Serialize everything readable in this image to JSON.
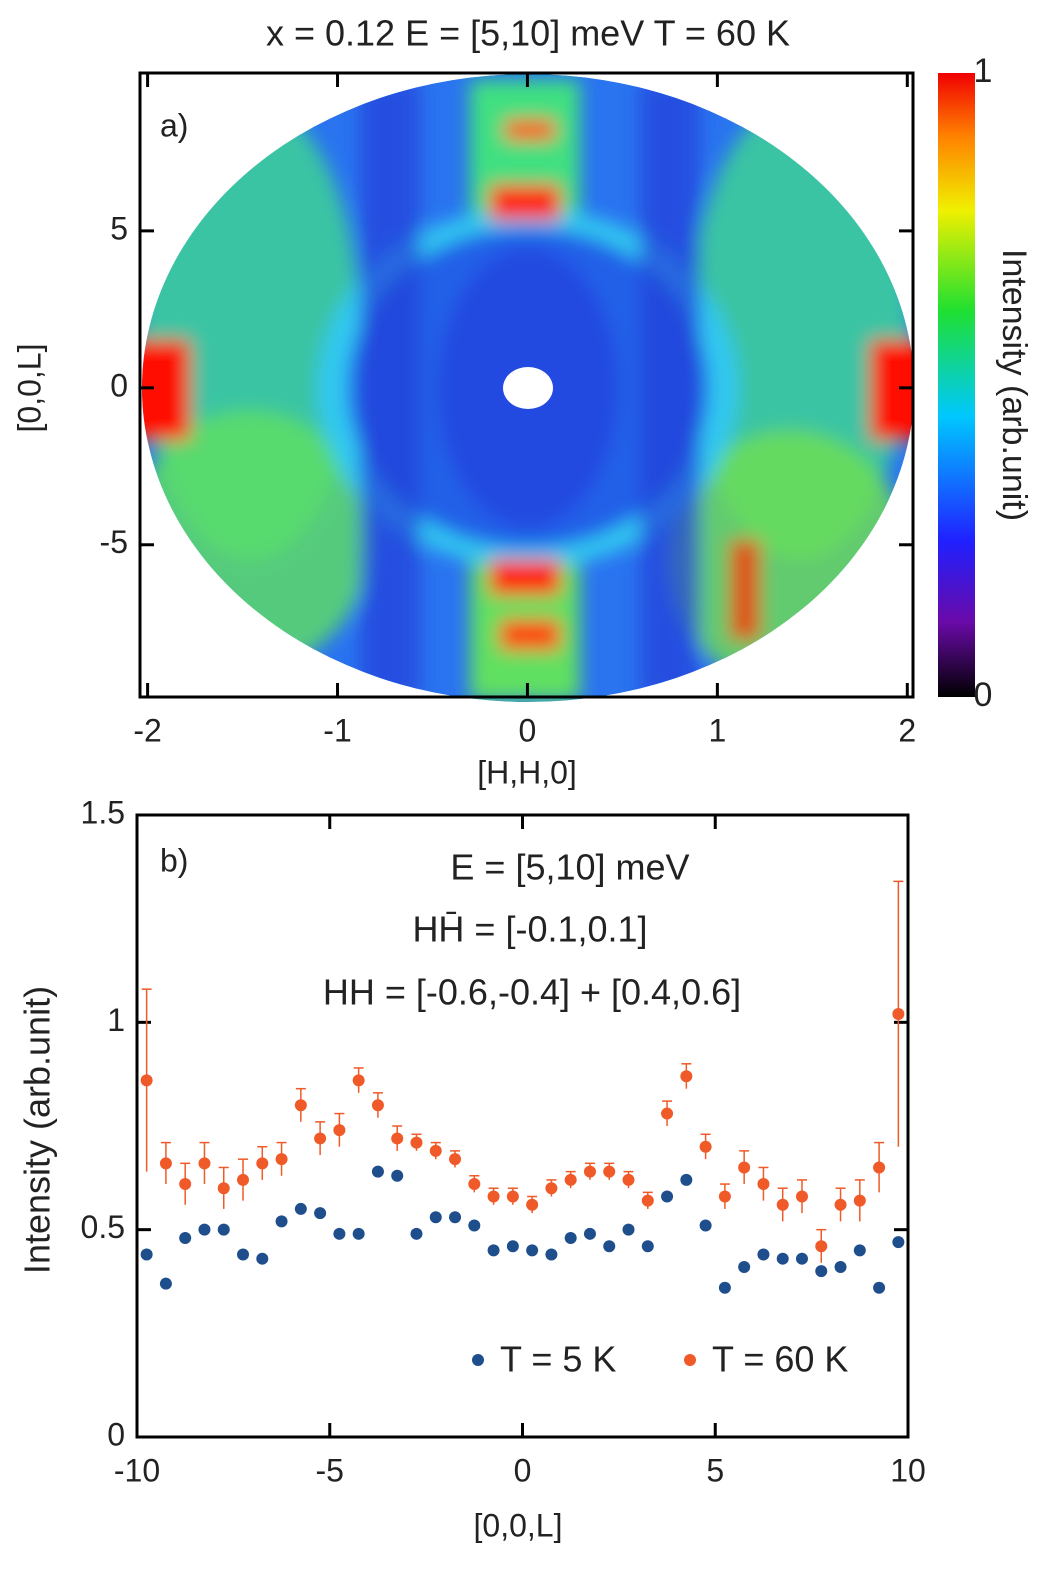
{
  "chart_data": [
    {
      "type": "heatmap",
      "title": "x = 0.12 E = [5,10] meV T = 60 K",
      "annotation": "a)",
      "xlabel": "[H,H,0]",
      "ylabel": "[0,0,L]",
      "xlim": [
        -2.04,
        2.03
      ],
      "xticks": [
        -2,
        -1,
        0,
        1,
        2
      ],
      "ylim": [
        -9.85,
        10.03
      ],
      "yticks": [
        -5,
        0,
        5
      ],
      "colorbar": {
        "label": "Intensity (arb.unit)",
        "lim": [
          0,
          1
        ],
        "ticks": [
          0,
          1
        ]
      }
    },
    {
      "type": "scatter",
      "annotation": "b)",
      "texts": [
        "E = [5,10] meV",
        "HH̄ = [-0.1,0.1]",
        "HH = [-0.6,-0.4] + [0.4,0.6]"
      ],
      "xlabel": "[0,0,L]",
      "ylabel": "Intensity (arb.unit)",
      "xlim": [
        -10,
        10
      ],
      "xticks": [
        -10,
        -5,
        0,
        5,
        10
      ],
      "ylim": [
        0,
        1.5
      ],
      "yticks": [
        0,
        0.5,
        1,
        1.5
      ],
      "x": [
        -9.75,
        -9.25,
        -8.75,
        -8.25,
        -7.75,
        -7.25,
        -6.75,
        -6.25,
        -5.75,
        -5.25,
        -4.75,
        -4.25,
        -3.75,
        -3.25,
        -2.75,
        -2.25,
        -1.75,
        -1.25,
        -0.75,
        -0.25,
        0.25,
        0.75,
        1.25,
        1.75,
        2.25,
        2.75,
        3.25,
        3.75,
        4.25,
        4.75,
        5.25,
        5.75,
        6.25,
        6.75,
        7.25,
        7.75,
        8.25,
        8.75,
        9.25,
        9.75
      ],
      "series": [
        {
          "name": "T = 5 K",
          "color": "#1f4e8c",
          "values": [
            0.44,
            0.37,
            0.48,
            0.5,
            0.5,
            0.44,
            0.43,
            0.52,
            0.55,
            0.54,
            0.49,
            0.49,
            0.64,
            0.63,
            0.49,
            0.53,
            0.53,
            0.51,
            0.45,
            0.46,
            0.45,
            0.44,
            0.48,
            0.49,
            0.46,
            0.5,
            0.46,
            0.58,
            0.62,
            0.51,
            0.36,
            0.41,
            0.44,
            0.43,
            0.43,
            0.4,
            0.41,
            0.45,
            0.36,
            0.47
          ]
        },
        {
          "name": "T = 60 K",
          "color": "#f05a28",
          "values": [
            0.86,
            0.66,
            0.61,
            0.66,
            0.6,
            0.62,
            0.66,
            0.67,
            0.8,
            0.72,
            0.74,
            0.86,
            0.8,
            0.72,
            0.71,
            0.69,
            0.67,
            0.61,
            0.58,
            0.58,
            0.56,
            0.6,
            0.62,
            0.64,
            0.64,
            0.62,
            0.57,
            0.78,
            0.87,
            0.7,
            0.58,
            0.65,
            0.61,
            0.56,
            0.58,
            0.46,
            0.56,
            0.57,
            0.65,
            1.02
          ],
          "errors": [
            0.22,
            0.05,
            0.05,
            0.05,
            0.05,
            0.05,
            0.04,
            0.04,
            0.04,
            0.04,
            0.04,
            0.03,
            0.03,
            0.03,
            0.02,
            0.02,
            0.02,
            0.02,
            0.02,
            0.02,
            0.02,
            0.02,
            0.02,
            0.02,
            0.02,
            0.02,
            0.02,
            0.03,
            0.03,
            0.03,
            0.03,
            0.04,
            0.04,
            0.04,
            0.04,
            0.04,
            0.04,
            0.05,
            0.06,
            0.32
          ]
        }
      ]
    }
  ]
}
